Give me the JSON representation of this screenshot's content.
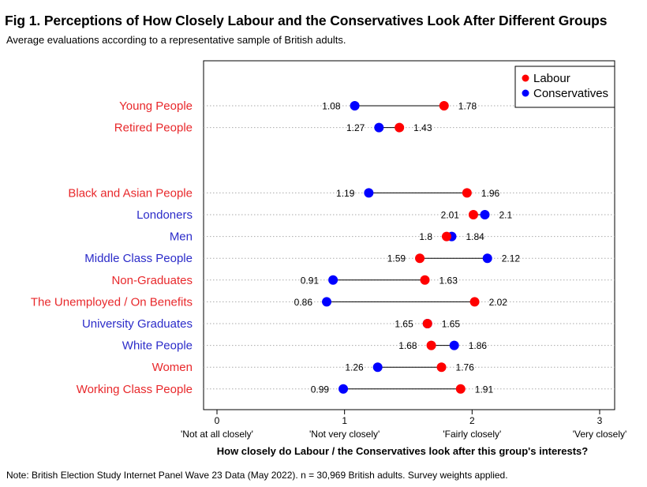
{
  "title": "Fig 1. Perceptions of How Closely Labour and the Conservatives Look After Different Groups",
  "subtitle": "Average evaluations according to a representative sample of British adults.",
  "note": "Note: British Election Study Internet Panel Wave 23 Data (May 2022). n = 30,969 British adults. Survey weights applied.",
  "colors": {
    "labour": "#ff0000",
    "conservatives": "#0000ff",
    "label_red": "#e8282b",
    "label_blue": "#2b2bc9"
  },
  "chart_data": {
    "type": "scatter",
    "subtype": "dumbbell",
    "xlabel": "How closely do Labour / the Conservatives look after this group's interests?",
    "xlim": [
      0,
      3
    ],
    "xticks": [
      0,
      1,
      2,
      3
    ],
    "xtick_sublabels": [
      "'Not at all closely'",
      "'Not very closely'",
      "'Fairly closely'",
      "'Very closely'"
    ],
    "grid": "horizontal dotted",
    "legend_position": "top-right",
    "series": [
      {
        "name": "Labour",
        "color": "#ff0000"
      },
      {
        "name": "Conservatives",
        "color": "#0000ff"
      }
    ],
    "groups": [
      [
        {
          "category": "Young People",
          "labour": 1.78,
          "conservatives": 1.08,
          "label_color": "red"
        },
        {
          "category": "Retired People",
          "labour": 1.43,
          "conservatives": 1.27,
          "label_color": "red"
        }
      ],
      [
        {
          "category": "Black and Asian People",
          "labour": 1.96,
          "conservatives": 1.19,
          "label_color": "red"
        },
        {
          "category": "Londoners",
          "labour": 2.01,
          "conservatives": 2.1,
          "label_color": "blue"
        },
        {
          "category": "Men",
          "labour": 1.8,
          "conservatives": 1.84,
          "label_color": "blue"
        },
        {
          "category": "Middle Class People",
          "labour": 1.59,
          "conservatives": 2.12,
          "label_color": "blue"
        },
        {
          "category": "Non-Graduates",
          "labour": 1.63,
          "conservatives": 0.91,
          "label_color": "red"
        },
        {
          "category": "The Unemployed / On Benefits",
          "labour": 2.02,
          "conservatives": 0.86,
          "label_color": "red"
        },
        {
          "category": "University Graduates",
          "labour": 1.65,
          "conservatives": 1.65,
          "label_color": "blue"
        },
        {
          "category": "White People",
          "labour": 1.68,
          "conservatives": 1.86,
          "label_color": "blue"
        },
        {
          "category": "Women",
          "labour": 1.76,
          "conservatives": 1.26,
          "label_color": "red"
        },
        {
          "category": "Working Class People",
          "labour": 1.91,
          "conservatives": 0.99,
          "label_color": "red"
        }
      ]
    ]
  }
}
